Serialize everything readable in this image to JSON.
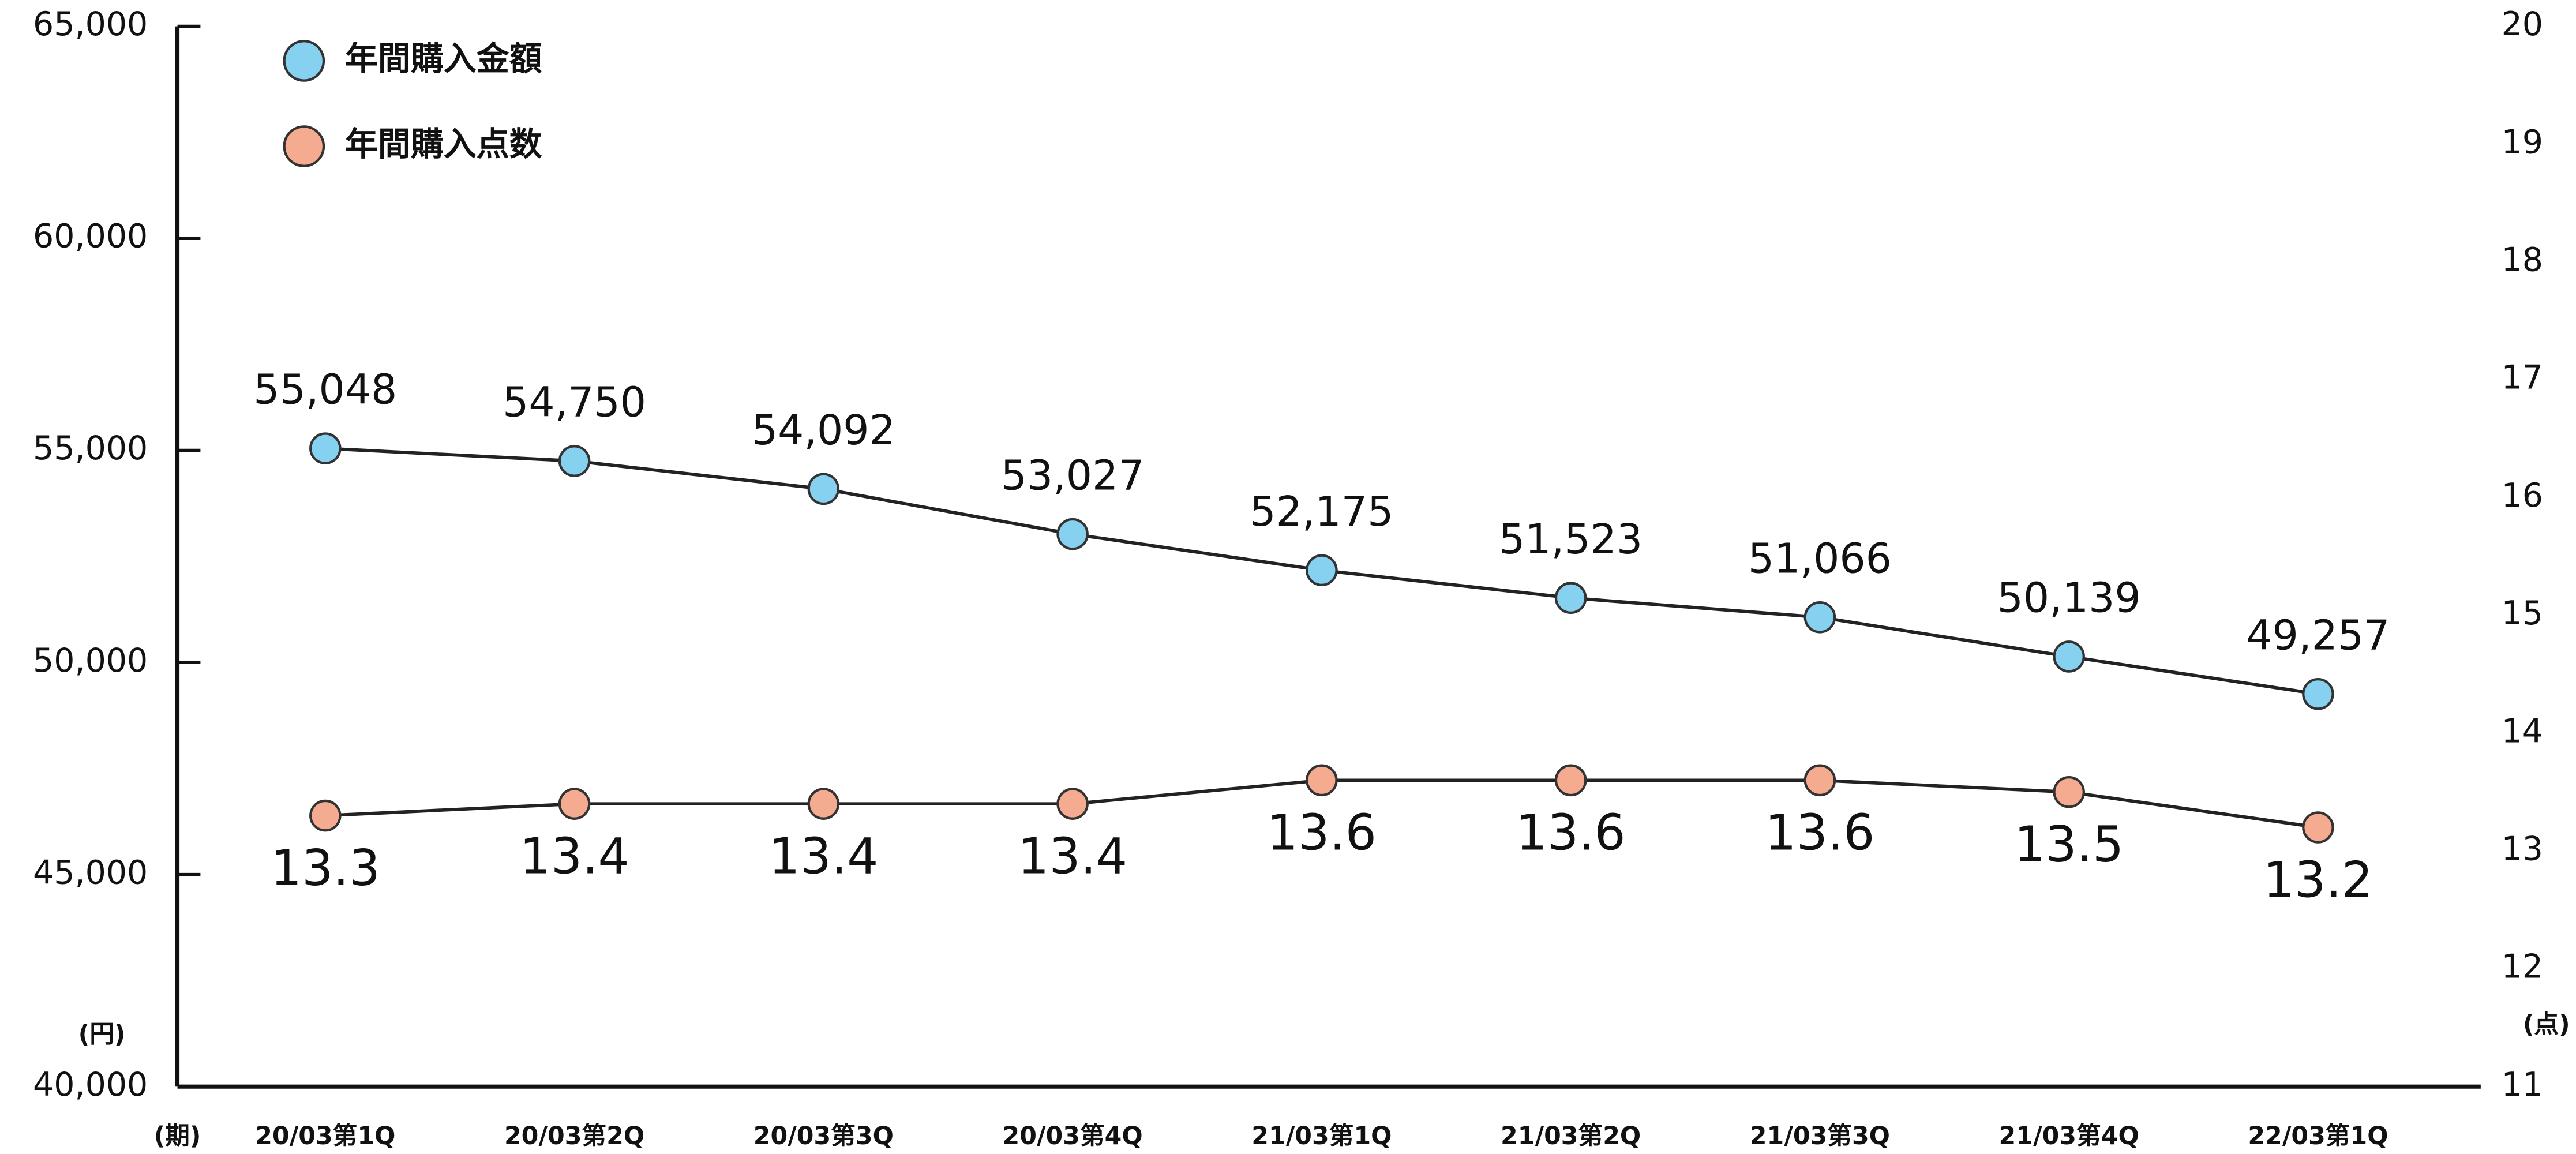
{
  "chart_data": {
    "type": "line",
    "categories": [
      "20/03第1Q",
      "20/03第2Q",
      "20/03第3Q",
      "20/03第4Q",
      "21/03第1Q",
      "21/03第2Q",
      "21/03第3Q",
      "21/03第4Q",
      "22/03第1Q"
    ],
    "x_label": "(期)",
    "y_label": "(円)",
    "y2_label": "(点)",
    "ylim": [
      40000,
      65000
    ],
    "yticks": [
      {
        "value": 40000,
        "label": "40,000"
      },
      {
        "value": 45000,
        "label": "45,000"
      },
      {
        "value": 50000,
        "label": "50,000"
      },
      {
        "value": 55000,
        "label": "55,000"
      },
      {
        "value": 60000,
        "label": "60,000"
      },
      {
        "value": 65000,
        "label": "65,000"
      }
    ],
    "y2lim": [
      11,
      20
    ],
    "y2ticks": [
      11,
      12,
      13,
      14,
      15,
      16,
      17,
      18,
      19,
      20
    ],
    "legend": "upper left",
    "series": [
      {
        "name": "年間購入金額",
        "color": "#86d0f0",
        "axis": "y",
        "values": [
          55048,
          54750,
          54092,
          53027,
          52175,
          51523,
          51066,
          50139,
          49257
        ],
        "value_labels": [
          "55,048",
          "54,750",
          "54,092",
          "53,027",
          "52,175",
          "51,523",
          "51,066",
          "50,139",
          "49,257"
        ]
      },
      {
        "name": "年間購入点数",
        "color": "#f5ab90",
        "axis": "y2",
        "values": [
          13.3,
          13.4,
          13.4,
          13.4,
          13.6,
          13.6,
          13.6,
          13.5,
          13.2
        ]
      }
    ]
  }
}
